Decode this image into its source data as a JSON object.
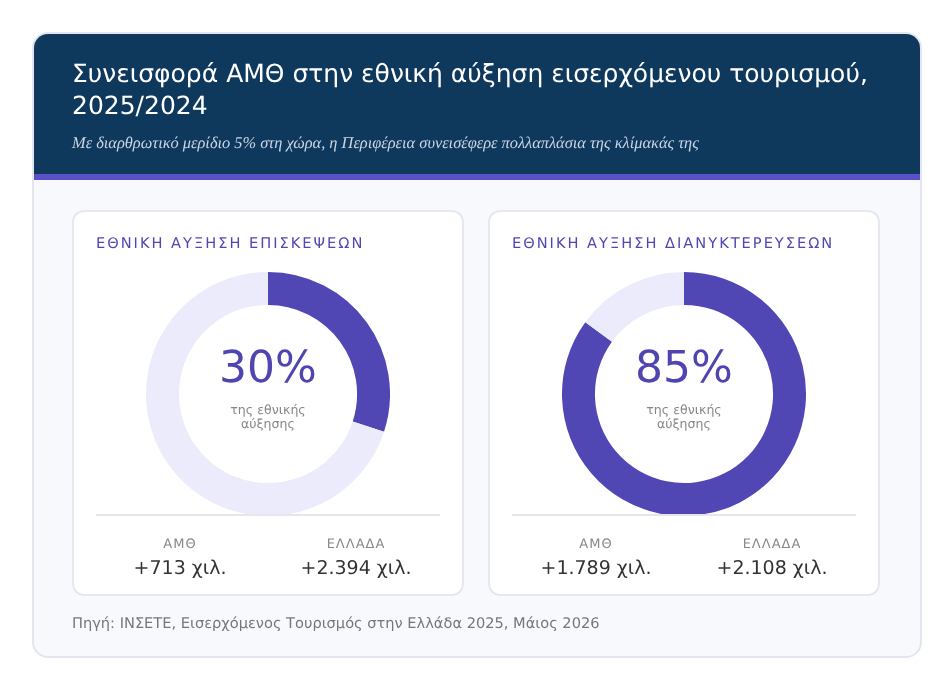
{
  "chart_data": [
    {
      "type": "other",
      "title": "Συνεισφορά ΑΜΘ στην εθνική αύξηση εισερχόμενου τουρισμού, 2025/2024",
      "subtitle": "Με διαρθρωτικό μερίδιο 5% στη χώρα, η Περιφέρεια συνεισέφερε πολλαπλάσια της κλίμακάς της",
      "annotations": [
        "Πηγή: ΙΝΣΕΤΕ, Εισερχόμενος Τουρισμός στην Ελλάδα 2025, Μάιος 2026"
      ]
    },
    {
      "type": "donut",
      "title": "ΕΘΝΙΚΗ ΑΥΞΗΣΗ ΕΠΙΣΚΕΨΕΩΝ",
      "categories": [
        null,
        null
      ],
      "values": [
        30,
        70
      ],
      "colors": [
        "#5046b4",
        "#ecebfb"
      ],
      "annotations": [
        "30%",
        "της εθνικής αύξησης",
        "ΑΜΘ",
        "+713 χιλ.",
        "ΕΛΛΑΔΑ",
        "+2.394 χιλ."
      ]
    },
    {
      "type": "donut",
      "title": "ΕΘΝΙΚΗ ΑΥΞΗΣΗ ΔΙΑΝΥΚΤΕΡΕΥΣΕΩΝ",
      "categories": [
        null,
        null
      ],
      "values": [
        85,
        15
      ],
      "colors": [
        "#5046b4",
        "#ecebfb"
      ],
      "annotations": [
        "85%",
        "της εθνικής αύξησης",
        "ΑΜΘ",
        "+1.789 χιλ.",
        "ΕΛΛΑΔΑ",
        "+2.108 χιλ."
      ]
    }
  ]
}
